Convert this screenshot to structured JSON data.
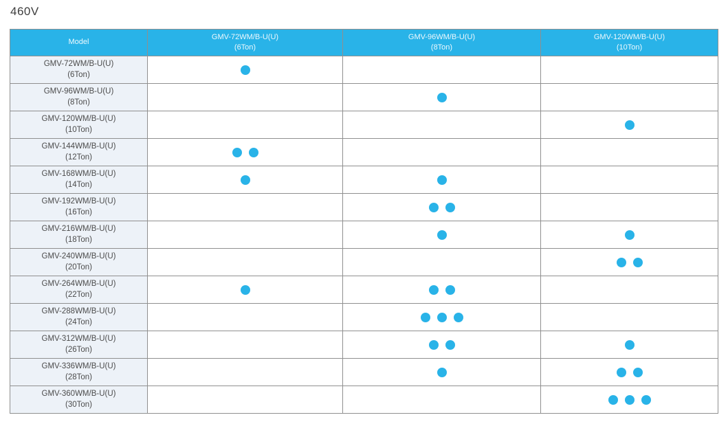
{
  "title": "460V",
  "colors": {
    "accent": "#29b3e8",
    "header_background": "#29b3e8",
    "header_text": "#ffffff",
    "model_cell_background": "#edf2f8",
    "border": "#8f8f8f",
    "dot": "#29b3e8"
  },
  "table": {
    "columns": [
      {
        "label": "Model",
        "sub": ""
      },
      {
        "label": "GMV-72WM/B-U(U)",
        "sub": "(6Ton)"
      },
      {
        "label": "GMV-96WM/B-U(U)",
        "sub": "(8Ton)"
      },
      {
        "label": "GMV-120WM/B-U(U)",
        "sub": "(10Ton)"
      }
    ],
    "rows": [
      {
        "model": "GMV-72WM/B-U(U)",
        "tons": "(6Ton)",
        "dots": [
          1,
          0,
          0
        ]
      },
      {
        "model": "GMV-96WM/B-U(U)",
        "tons": "(8Ton)",
        "dots": [
          0,
          1,
          0
        ]
      },
      {
        "model": "GMV-120WM/B-U(U)",
        "tons": "(10Ton)",
        "dots": [
          0,
          0,
          1
        ]
      },
      {
        "model": "GMV-144WM/B-U(U)",
        "tons": "(12Ton)",
        "dots": [
          2,
          0,
          0
        ]
      },
      {
        "model": "GMV-168WM/B-U(U)",
        "tons": "(14Ton)",
        "dots": [
          1,
          1,
          0
        ]
      },
      {
        "model": "GMV-192WM/B-U(U)",
        "tons": "(16Ton)",
        "dots": [
          0,
          2,
          0
        ]
      },
      {
        "model": "GMV-216WM/B-U(U)",
        "tons": "(18Ton)",
        "dots": [
          0,
          1,
          1
        ]
      },
      {
        "model": "GMV-240WM/B-U(U)",
        "tons": "(20Ton)",
        "dots": [
          0,
          0,
          2
        ]
      },
      {
        "model": "GMV-264WM/B-U(U)",
        "tons": "(22Ton)",
        "dots": [
          1,
          2,
          0
        ]
      },
      {
        "model": "GMV-288WM/B-U(U)",
        "tons": "(24Ton)",
        "dots": [
          0,
          3,
          0
        ]
      },
      {
        "model": "GMV-312WM/B-U(U)",
        "tons": "(26Ton)",
        "dots": [
          0,
          2,
          1
        ]
      },
      {
        "model": "GMV-336WM/B-U(U)",
        "tons": "(28Ton)",
        "dots": [
          0,
          1,
          2
        ]
      },
      {
        "model": "GMV-360WM/B-U(U)",
        "tons": "(30Ton)",
        "dots": [
          0,
          0,
          3
        ]
      }
    ]
  }
}
